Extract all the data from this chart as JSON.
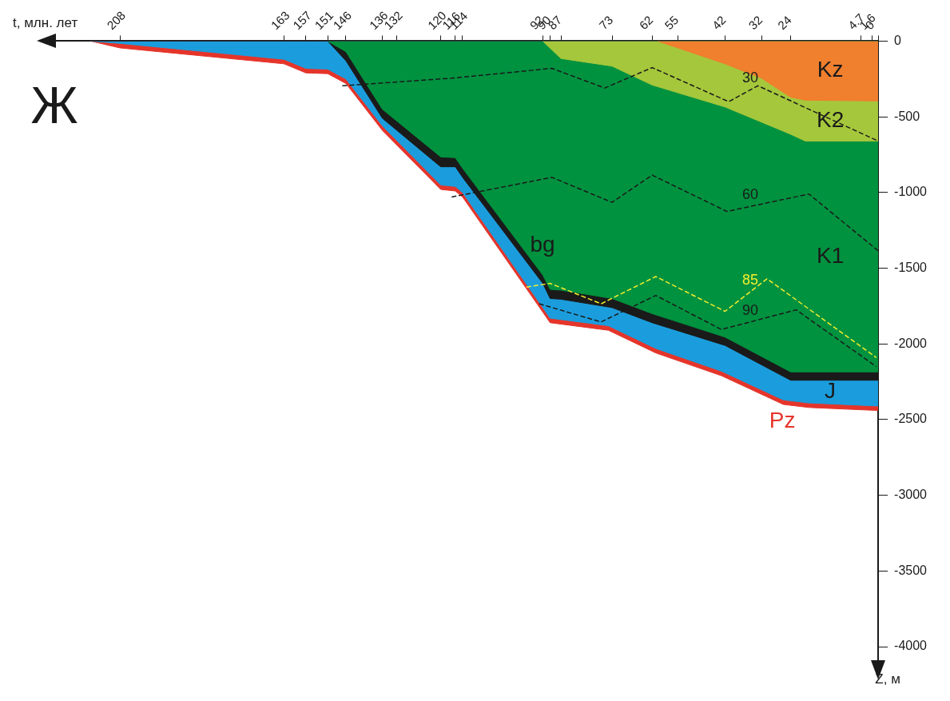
{
  "chart_data": {
    "type": "area",
    "xlabel": "t, млн. лет",
    "ylabel": "Z, м",
    "xlim": [
      226,
      0
    ],
    "xticks": [
      208,
      163,
      157,
      151,
      146,
      136,
      132,
      120,
      116,
      114,
      92,
      90,
      87,
      73,
      62,
      55,
      42,
      32,
      24,
      4.7,
      1.6,
      0
    ],
    "ylim": [
      -4100,
      0
    ],
    "yticks": [
      0,
      -500,
      -1000,
      -1500,
      -2000,
      -2500,
      -3000,
      -3500,
      -4000
    ],
    "grid": false,
    "legend": false,
    "marker": "none",
    "series": [
      {
        "name": "Pz",
        "color": "#e5352b",
        "x": [
          216,
          208,
          163,
          157,
          151,
          146,
          136,
          120,
          116,
          114,
          92,
          90,
          74,
          61,
          43,
          26,
          19,
          0
        ],
        "values": [
          0,
          -45,
          -150,
          -210,
          -215,
          -280,
          -590,
          -980,
          -990,
          -1030,
          -1790,
          -1860,
          -1910,
          -2060,
          -2210,
          -2400,
          -2420,
          -2440
        ]
      },
      {
        "name": "J",
        "color": "#1b9ddd",
        "x": [
          216,
          208,
          163,
          157,
          151,
          146,
          136,
          120,
          116,
          114,
          92,
          90,
          74,
          61,
          43,
          26,
          19,
          0
        ],
        "values": [
          0,
          -15,
          -120,
          -180,
          -185,
          -250,
          -560,
          -950,
          -960,
          -1000,
          -1760,
          -1830,
          -1880,
          -2030,
          -2180,
          -2370,
          -2390,
          -2410
        ]
      },
      {
        "name": "bg",
        "color": "#1a1a1a",
        "x": [
          216,
          151,
          146,
          136,
          120,
          116,
          114,
          92,
          90,
          87,
          73,
          62,
          42,
          24,
          0
        ],
        "values": [
          0,
          0,
          -130,
          -510,
          -830,
          -830,
          -900,
          -1600,
          -1700,
          -1705,
          -1760,
          -1860,
          -2010,
          -2240,
          -2240
        ]
      },
      {
        "name": "K1",
        "color": "#00923f",
        "x": [
          151,
          146,
          136,
          120,
          116,
          114,
          92,
          90,
          87,
          73,
          62,
          42,
          24,
          0
        ],
        "values": [
          0,
          -70,
          -450,
          -765,
          -770,
          -840,
          -1545,
          -1640,
          -1645,
          -1700,
          -1800,
          -1955,
          -2185,
          -2185
        ]
      },
      {
        "name": "K2",
        "color": "#a5c73b",
        "x": [
          92,
          87,
          73,
          62,
          42,
          24,
          20,
          0
        ],
        "values": [
          0,
          -115,
          -165,
          -290,
          -435,
          -615,
          -660,
          -660
        ]
      },
      {
        "name": "Kz",
        "color": "#f07f2e",
        "x": [
          60.5,
          42,
          32,
          24,
          20,
          0
        ],
        "values": [
          0,
          -150,
          -245,
          -370,
          -390,
          -395
        ]
      },
      {
        "type": "line",
        "name": "30",
        "color": "#1a1a1a",
        "line_style": "dashed",
        "x": [
          147,
          117,
          89.5,
          75,
          62,
          41,
          33,
          0
        ],
        "values": [
          -295,
          -245,
          -180,
          -310,
          -175,
          -400,
          -295,
          -660
        ]
      },
      {
        "type": "line",
        "name": "60",
        "color": "#1a1a1a",
        "line_style": "dashed",
        "x": [
          117,
          89.5,
          73,
          62,
          41.5,
          19,
          0
        ],
        "values": [
          -1030,
          -900,
          -1065,
          -885,
          -1125,
          -1010,
          -1385
        ]
      },
      {
        "type": "line",
        "name": "90",
        "color": "#1a1a1a",
        "line_style": "dashed",
        "x": [
          93,
          76,
          61,
          43,
          22.5,
          0.5
        ],
        "values": [
          -1735,
          -1855,
          -1680,
          -1905,
          -1775,
          -2150
        ]
      },
      {
        "type": "line",
        "name": "85",
        "color": "#f4ee2c",
        "line_style": "dashed",
        "x": [
          96.5,
          90,
          76,
          61,
          42,
          30.5,
          0.5
        ],
        "values": [
          -1625,
          -1600,
          -1735,
          -1555,
          -1785,
          -1570,
          -2090
        ]
      }
    ],
    "annotations": [
      "Ж"
    ]
  }
}
